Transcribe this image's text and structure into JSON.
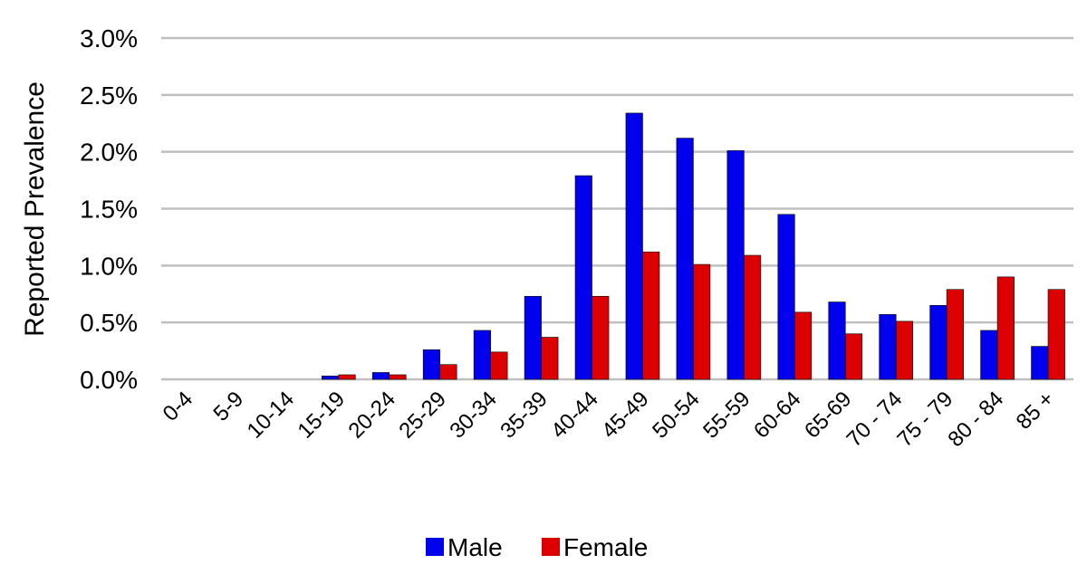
{
  "chart_data": {
    "type": "bar",
    "title": "",
    "xlabel": "",
    "ylabel": "Reported Prevalence",
    "ylim": [
      0,
      0.03
    ],
    "y_tick_format": "percent_1dp",
    "y_ticks": [
      0,
      0.005,
      0.01,
      0.015,
      0.02,
      0.025,
      0.03
    ],
    "grid": true,
    "legend_position": "bottom-center",
    "categories": [
      "0-4",
      "5-9",
      "10-14",
      "15-19",
      "20-24",
      "25-29",
      "30-34",
      "35-39",
      "40-44",
      "45-49",
      "50-54",
      "55-59",
      "60-64",
      "65-69",
      "70 - 74",
      "75 - 79",
      "80 - 84",
      "85 +"
    ],
    "series": [
      {
        "name": "Male",
        "color": "#0000ee",
        "values": [
          0,
          0,
          0,
          0.0003,
          0.0006,
          0.0026,
          0.0043,
          0.0073,
          0.0179,
          0.0234,
          0.0212,
          0.0201,
          0.0145,
          0.0068,
          0.0057,
          0.0065,
          0.0043,
          0.0029
        ]
      },
      {
        "name": "Female",
        "color": "#dd0000",
        "values": [
          0,
          0,
          0,
          0.0004,
          0.0004,
          0.0013,
          0.0024,
          0.0037,
          0.0073,
          0.0112,
          0.0101,
          0.0109,
          0.0059,
          0.004,
          0.0051,
          0.0079,
          0.009,
          0.0079
        ]
      }
    ]
  }
}
